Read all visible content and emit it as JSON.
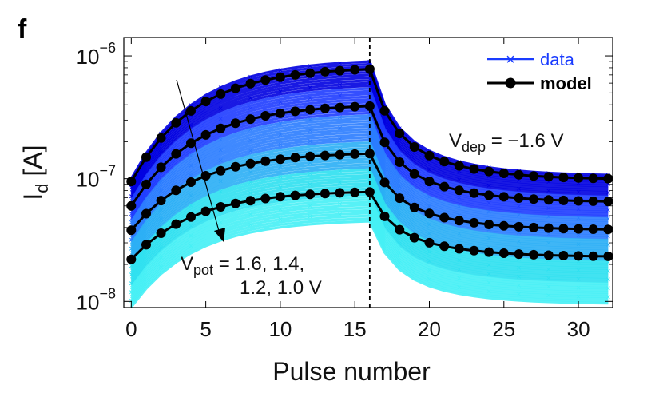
{
  "panel_label": "f",
  "chart_data": {
    "type": "line",
    "xlabel": "Pulse number",
    "ylabel": {
      "main": "I",
      "sub": "d",
      "unit": " [A]"
    },
    "xlim": [
      -0.5,
      32.3
    ],
    "ylim_log10": [
      -8.05,
      -5.85
    ],
    "y_scale": "log",
    "x_ticks": [
      0,
      5,
      10,
      15,
      20,
      25,
      30
    ],
    "y_ticks": [
      {
        "value_log10": -6,
        "base": "10",
        "exp": "−6"
      },
      {
        "value_log10": -7,
        "base": "10",
        "exp": "−7"
      },
      {
        "value_log10": -8,
        "base": "10",
        "exp": "−8"
      }
    ],
    "vline_x": 16,
    "grid": false,
    "legend": {
      "placement": "top-right",
      "entries": [
        {
          "label": "data",
          "color": "#1a3cff",
          "marker": "x"
        },
        {
          "label": "model",
          "color": "#000000",
          "marker": "o"
        }
      ]
    },
    "annotations": {
      "vdep": {
        "main": "V",
        "sub": "dep",
        "rest": " = −1.6 V"
      },
      "vpot": {
        "main": "V",
        "sub": "pot",
        "line1": " = 1.6, 1.4,",
        "line2": "1.2, 1.0 V"
      }
    },
    "model_series": [
      {
        "name": "V_pot = 1.6 V",
        "start": 9.5e-08,
        "peak": 7.8e-07,
        "end": 9.8e-08
      },
      {
        "name": "V_pot = 1.4 V",
        "start": 6e-08,
        "peak": 3.9e-07,
        "end": 6.4e-08
      },
      {
        "name": "V_pot = 1.2 V",
        "start": 3.8e-08,
        "peak": 1.6e-07,
        "end": 3.8e-08
      },
      {
        "name": "V_pot = 1.0 V",
        "start": 2.2e-08,
        "peak": 7.8e-08,
        "end": 2.3e-08
      }
    ],
    "data_band": {
      "colors": [
        "#0000e0",
        "#1e3cff",
        "#2a7cff",
        "#2aaef5",
        "#2ee0f0",
        "#45f0f5"
      ],
      "upper_start": 1e-07,
      "upper_peak": 9e-07,
      "upper_end": 1.05e-07,
      "lower_start": 9e-09,
      "lower_peak": 4.5e-08,
      "lower_end": 9.5e-09
    }
  }
}
